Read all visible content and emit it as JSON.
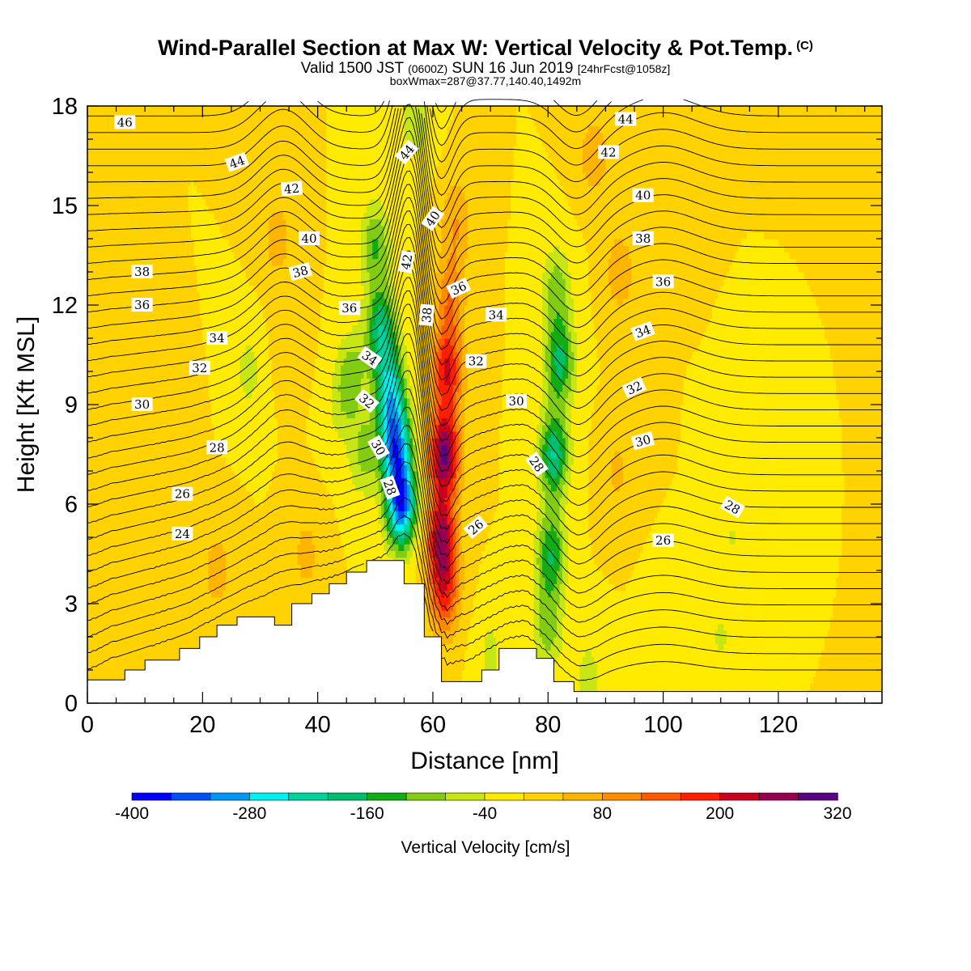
{
  "header": {
    "title": "Wind-Parallel Section at Max W: Vertical Velocity & Pot.Temp.",
    "copyright": "(C)",
    "valid_prefix": "Valid 1500 JST",
    "valid_z": "(0600Z)",
    "valid_date": "SUN 16 Jun 2019",
    "forecast": "[24hrFcst@1058z]",
    "boxline": "boxWmax=287@37.77,140.40,1492m"
  },
  "chart_data": {
    "type": "heatmap",
    "title": "Wind-Parallel Section at Max W: Vertical Velocity & Pot.Temp.",
    "xlabel": "Distance [nm]",
    "ylabel": "Height [Kft MSL]",
    "xlim": [
      0,
      138
    ],
    "ylim": [
      0,
      18
    ],
    "xticks": [
      "0",
      "20",
      "40",
      "60",
      "80",
      "100",
      "120"
    ],
    "yticks": [
      "0",
      "3",
      "6",
      "9",
      "12",
      "15",
      "18"
    ],
    "colorbar": {
      "title": "Vertical Velocity [cm/s]",
      "min": -400,
      "max": 320,
      "step": 40,
      "labels": [
        "-400",
        "-280",
        "-160",
        "-40",
        "80",
        "200",
        "320"
      ],
      "colors": [
        "#0000ff",
        "#0050f5",
        "#0096f5",
        "#00f0f0",
        "#00d49c",
        "#00be6e",
        "#12ac14",
        "#82cc14",
        "#c8e614",
        "#ffeb00",
        "#ffd200",
        "#ffb400",
        "#ff8c00",
        "#ff5a00",
        "#ff1e00",
        "#c8001e",
        "#960050",
        "#5a0082"
      ]
    },
    "velocity_cells": [
      {
        "x": 54.5,
        "y": 6.0,
        "w": -340
      },
      {
        "x": 53.5,
        "y": 7.8,
        "w": -290
      },
      {
        "x": 52.5,
        "y": 9.5,
        "w": -210
      },
      {
        "x": 51.0,
        "y": 11.3,
        "w": -180
      },
      {
        "x": 50.0,
        "y": 13.8,
        "w": -120
      },
      {
        "x": 48.0,
        "y": 7.5,
        "w": -90
      },
      {
        "x": 46.0,
        "y": 10.0,
        "w": -90
      },
      {
        "x": 44.0,
        "y": 9.0,
        "w": -50
      },
      {
        "x": 57.0,
        "y": 17.5,
        "w": -70
      },
      {
        "x": 62.0,
        "y": 7.5,
        "w": 287
      },
      {
        "x": 61.5,
        "y": 5.0,
        "w": 240
      },
      {
        "x": 62.5,
        "y": 10.0,
        "w": 200
      },
      {
        "x": 63.0,
        "y": 12.2,
        "w": 110
      },
      {
        "x": 62.0,
        "y": 3.3,
        "w": 160
      },
      {
        "x": 64.0,
        "y": 14.5,
        "w": 80
      },
      {
        "x": 81.0,
        "y": 7.5,
        "w": -200
      },
      {
        "x": 80.5,
        "y": 4.5,
        "w": -160
      },
      {
        "x": 82.0,
        "y": 10.3,
        "w": -170
      },
      {
        "x": 81.5,
        "y": 12.5,
        "w": -100
      },
      {
        "x": 80.0,
        "y": 2.3,
        "w": -100
      },
      {
        "x": 33.0,
        "y": 14.0,
        "w": 60
      },
      {
        "x": 35.0,
        "y": 11.0,
        "w": 40
      },
      {
        "x": 92.5,
        "y": 13.0,
        "w": 70
      },
      {
        "x": 92.0,
        "y": 7.0,
        "w": 50
      },
      {
        "x": 88.0,
        "y": 16.5,
        "w": 70
      },
      {
        "x": 22.5,
        "y": 4.0,
        "w": 60
      },
      {
        "x": 38.0,
        "y": 4.5,
        "w": 55
      },
      {
        "x": 7.0,
        "y": 6.5,
        "w": 35
      },
      {
        "x": 15.0,
        "y": 8.0,
        "w": 30
      },
      {
        "x": 28.0,
        "y": 10.0,
        "w": -55
      },
      {
        "x": 99.0,
        "y": 16.0,
        "w": 10
      },
      {
        "x": 112.0,
        "y": 5.0,
        "w": -40
      },
      {
        "x": 110.0,
        "y": 2.0,
        "w": -45
      },
      {
        "x": 116.0,
        "y": 6.5,
        "w": -30
      },
      {
        "x": 100.0,
        "y": 2.0,
        "w": -40
      },
      {
        "x": 87.0,
        "y": 0.7,
        "w": -60
      },
      {
        "x": 70.0,
        "y": 1.5,
        "w": -50
      }
    ],
    "terrain": [
      [
        0,
        0.7
      ],
      [
        6.5,
        0.7
      ],
      [
        6.5,
        1.0
      ],
      [
        10,
        1.0
      ],
      [
        10,
        1.3
      ],
      [
        16,
        1.3
      ],
      [
        16,
        1.65
      ],
      [
        19.5,
        1.65
      ],
      [
        19.5,
        2.0
      ],
      [
        22.5,
        2.0
      ],
      [
        22.5,
        2.35
      ],
      [
        26,
        2.35
      ],
      [
        26,
        2.6
      ],
      [
        32.5,
        2.6
      ],
      [
        32.5,
        2.35
      ],
      [
        35.5,
        2.35
      ],
      [
        35.5,
        3.0
      ],
      [
        39,
        3.0
      ],
      [
        39,
        3.3
      ],
      [
        42,
        3.3
      ],
      [
        42,
        3.6
      ],
      [
        45,
        3.6
      ],
      [
        45,
        3.95
      ],
      [
        48.5,
        3.95
      ],
      [
        48.5,
        4.3
      ],
      [
        55,
        4.3
      ],
      [
        55,
        3.6
      ],
      [
        58.5,
        3.6
      ],
      [
        58.5,
        2.0
      ],
      [
        61.5,
        2.0
      ],
      [
        61.5,
        0.65
      ],
      [
        68.5,
        0.65
      ],
      [
        68.5,
        1.0
      ],
      [
        71.5,
        1.0
      ],
      [
        71.5,
        1.65
      ],
      [
        78,
        1.65
      ],
      [
        78,
        1.35
      ],
      [
        81,
        1.35
      ],
      [
        81,
        0.65
      ],
      [
        84.5,
        0.65
      ],
      [
        84.5,
        0.35
      ],
      [
        138,
        0.35
      ]
    ],
    "isentrope_labels": [
      {
        "x": 6.5,
        "y": 17.5,
        "v": "46",
        "rot": 0
      },
      {
        "x": 26,
        "y": 16.3,
        "v": "44",
        "rot": -20
      },
      {
        "x": 35.5,
        "y": 15.5,
        "v": "42",
        "rot": -5
      },
      {
        "x": 38.5,
        "y": 14.0,
        "v": "40",
        "rot": 0
      },
      {
        "x": 9.5,
        "y": 13.0,
        "v": "38",
        "rot": 0
      },
      {
        "x": 37,
        "y": 13.0,
        "v": "38",
        "rot": -15
      },
      {
        "x": 9.5,
        "y": 12.0,
        "v": "36",
        "rot": 0
      },
      {
        "x": 45.5,
        "y": 11.9,
        "v": "36",
        "rot": 0
      },
      {
        "x": 22.5,
        "y": 11.0,
        "v": "34",
        "rot": 0
      },
      {
        "x": 49,
        "y": 10.4,
        "v": "34",
        "rot": 35
      },
      {
        "x": 19.5,
        "y": 10.1,
        "v": "32",
        "rot": 0
      },
      {
        "x": 48.5,
        "y": 9.1,
        "v": "32",
        "rot": 40
      },
      {
        "x": 9.5,
        "y": 9.0,
        "v": "30",
        "rot": 0
      },
      {
        "x": 50.5,
        "y": 7.7,
        "v": "30",
        "rot": 60
      },
      {
        "x": 22.5,
        "y": 7.7,
        "v": "28",
        "rot": 0
      },
      {
        "x": 52.5,
        "y": 6.5,
        "v": "28",
        "rot": 70
      },
      {
        "x": 16.5,
        "y": 6.3,
        "v": "26",
        "rot": 0
      },
      {
        "x": 16.5,
        "y": 5.1,
        "v": "24",
        "rot": 0
      },
      {
        "x": 55.5,
        "y": 16.6,
        "v": "44",
        "rot": -50
      },
      {
        "x": 60,
        "y": 14.6,
        "v": "40",
        "rot": -55
      },
      {
        "x": 55.5,
        "y": 13.3,
        "v": "42",
        "rot": -80
      },
      {
        "x": 59,
        "y": 11.7,
        "v": "38",
        "rot": -85
      },
      {
        "x": 64.5,
        "y": 12.5,
        "v": "36",
        "rot": -25
      },
      {
        "x": 71,
        "y": 11.7,
        "v": "34",
        "rot": 0
      },
      {
        "x": 67.5,
        "y": 10.3,
        "v": "32",
        "rot": 0
      },
      {
        "x": 74.5,
        "y": 9.1,
        "v": "30",
        "rot": 0
      },
      {
        "x": 78,
        "y": 7.2,
        "v": "28",
        "rot": 55
      },
      {
        "x": 67.5,
        "y": 5.3,
        "v": "26",
        "rot": -40
      },
      {
        "x": 93.5,
        "y": 17.6,
        "v": "44",
        "rot": 0
      },
      {
        "x": 90.5,
        "y": 16.6,
        "v": "42",
        "rot": 0
      },
      {
        "x": 96.5,
        "y": 15.3,
        "v": "40",
        "rot": 0
      },
      {
        "x": 96.5,
        "y": 14.0,
        "v": "38",
        "rot": 0
      },
      {
        "x": 100,
        "y": 12.7,
        "v": "36",
        "rot": 0
      },
      {
        "x": 96.5,
        "y": 11.2,
        "v": "34",
        "rot": -20
      },
      {
        "x": 95,
        "y": 9.5,
        "v": "32",
        "rot": -25
      },
      {
        "x": 96.5,
        "y": 7.9,
        "v": "30",
        "rot": -15
      },
      {
        "x": 112,
        "y": 5.9,
        "v": "28",
        "rot": 30
      },
      {
        "x": 100,
        "y": 4.9,
        "v": "26",
        "rot": 0
      }
    ]
  }
}
